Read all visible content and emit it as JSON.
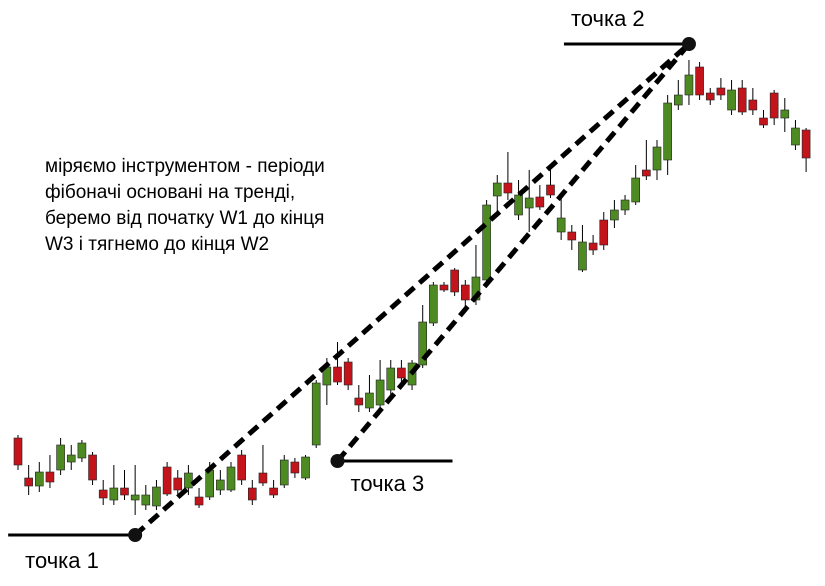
{
  "chart_data": {
    "type": "candlestick",
    "annotation": [
      "міряємо інструментом - періоди",
      "фібоначі основані на тренді,",
      "беремо від початку W1 до кінця",
      "W3 і тягнемо до кінця W2"
    ],
    "up_color": "#4e8a22",
    "down_color": "#c3141c",
    "ylim": [
      0,
      586
    ],
    "open": [
      148,
      108,
      100,
      114,
      116,
      124,
      128,
      131,
      96,
      86,
      98,
      86,
      81,
      80,
      119,
      108,
      98,
      89,
      89,
      96,
      96,
      131,
      98,
      113,
      98,
      101,
      124,
      108,
      141,
      201,
      219,
      224,
      188,
      178,
      181,
      196,
      218,
      201,
      221,
      263,
      301,
      316,
      301,
      286,
      306,
      390,
      403,
      371,
      378,
      389,
      401,
      354,
      354,
      316,
      343,
      366,
      366,
      376,
      384,
      416,
      416,
      426,
      481,
      491,
      519,
      493,
      498,
      476,
      498,
      486,
      468,
      493,
      468,
      441,
      456
    ],
    "high": [
      151,
      121,
      124,
      131,
      148,
      141,
      146,
      134,
      106,
      121,
      116,
      121,
      101,
      106,
      124,
      116,
      121,
      98,
      124,
      116,
      124,
      136,
      106,
      141,
      106,
      131,
      128,
      131,
      206,
      228,
      244,
      228,
      201,
      211,
      226,
      226,
      226,
      226,
      281,
      304,
      304,
      318,
      306,
      341,
      386,
      411,
      434,
      406,
      416,
      401,
      421,
      388,
      361,
      361,
      351,
      374,
      386,
      391,
      421,
      446,
      446,
      491,
      506,
      526,
      524,
      498,
      508,
      506,
      506,
      498,
      476,
      496,
      488,
      466,
      458
    ],
    "low": [
      116,
      91,
      94,
      98,
      111,
      116,
      124,
      101,
      81,
      81,
      86,
      71,
      76,
      76,
      90,
      91,
      91,
      78,
      86,
      91,
      94,
      101,
      81,
      100,
      88,
      98,
      108,
      106,
      138,
      181,
      201,
      196,
      174,
      174,
      176,
      191,
      201,
      196,
      218,
      260,
      294,
      290,
      278,
      281,
      301,
      374,
      386,
      366,
      354,
      376,
      388,
      346,
      336,
      314,
      331,
      336,
      358,
      371,
      381,
      406,
      406,
      411,
      476,
      481,
      486,
      481,
      486,
      471,
      471,
      471,
      458,
      461,
      454,
      436,
      414
    ],
    "close": [
      121,
      100,
      114,
      104,
      141,
      131,
      143,
      106,
      88,
      98,
      91,
      91,
      91,
      99,
      92,
      96,
      113,
      81,
      116,
      106,
      119,
      106,
      86,
      103,
      91,
      126,
      113,
      129,
      203,
      219,
      204,
      201,
      181,
      193,
      206,
      218,
      208,
      223,
      264,
      301,
      296,
      294,
      286,
      309,
      381,
      403,
      393,
      391,
      388,
      379,
      391,
      368,
      346,
      344,
      336,
      341,
      376,
      386,
      408,
      410,
      439,
      483,
      491,
      511,
      491,
      486,
      491,
      496,
      474,
      476,
      461,
      468,
      476,
      458,
      428
    ],
    "points": [
      {
        "label": "точка 1",
        "x": 11,
        "y": 51
      },
      {
        "label": "точка 2",
        "x": 63,
        "y": 542
      },
      {
        "label": "точка 3",
        "x": 30,
        "y": 125
      }
    ]
  }
}
